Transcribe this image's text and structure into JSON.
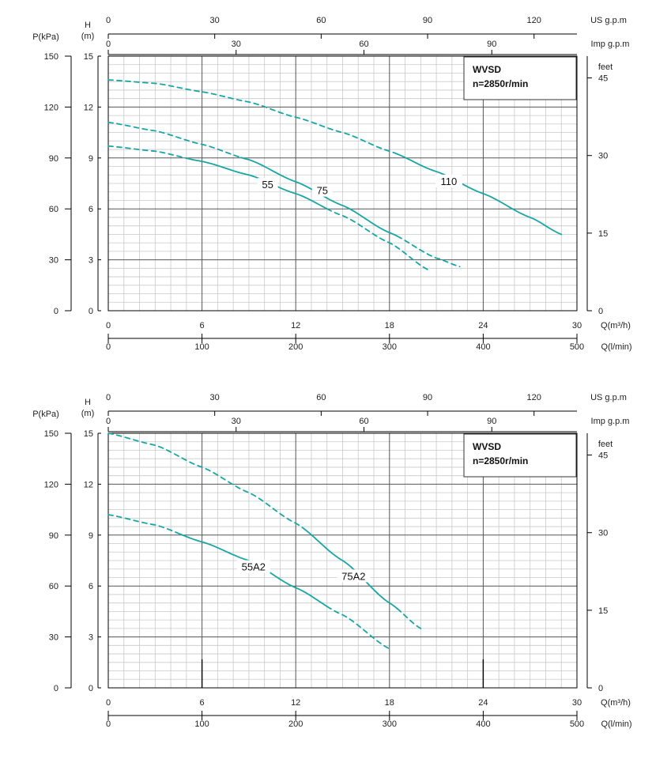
{
  "chart_data": [
    {
      "type": "line",
      "box": {
        "line1": "WVSD",
        "line2": "n=2850r/min"
      },
      "axes": {
        "p_label": "P(kPa)",
        "h_label": [
          "H",
          "(m)"
        ],
        "feet_label": "feet",
        "us_label": "US g.p.m",
        "imp_label": "Imp g.p.m",
        "qm3_label": "Q(m³/h)",
        "ql_label": "Q(l/min)"
      },
      "ticks": {
        "p": [
          "0",
          "30",
          "60",
          "90",
          "120",
          "150"
        ],
        "h": [
          "0",
          "3",
          "6",
          "9",
          "12",
          "15"
        ],
        "feet": [
          "0",
          "15",
          "30",
          "45"
        ],
        "us": [
          "0",
          "30",
          "60",
          "90",
          "120"
        ],
        "imp": [
          "0",
          "30",
          "60",
          "90"
        ],
        "qm3": [
          "0",
          "6",
          "12",
          "18",
          "24",
          "30"
        ],
        "ql": [
          "0",
          "100",
          "200",
          "300",
          "400",
          "500"
        ]
      },
      "xlim": [
        0,
        30
      ],
      "ylim": [
        0,
        15
      ],
      "grid": true,
      "series": [
        {
          "name": "55",
          "solid_range": [
            5,
            14
          ],
          "points": [
            [
              0,
              9.7
            ],
            [
              3,
              9.4
            ],
            [
              6,
              8.8
            ],
            [
              9,
              8.0
            ],
            [
              12,
              6.9
            ],
            [
              15,
              5.6
            ],
            [
              18,
              4.0
            ],
            [
              20.5,
              2.4
            ]
          ]
        },
        {
          "name": "75",
          "solid_range": [
            8.5,
            18.5
          ],
          "points": [
            [
              0,
              11.1
            ],
            [
              3,
              10.6
            ],
            [
              6,
              9.8
            ],
            [
              9,
              8.9
            ],
            [
              12,
              7.6
            ],
            [
              15,
              6.2
            ],
            [
              18,
              4.6
            ],
            [
              21,
              3.1
            ],
            [
              22.5,
              2.6
            ]
          ]
        },
        {
          "name": "110",
          "solid_range": [
            18.5,
            29
          ],
          "points": [
            [
              0,
              13.6
            ],
            [
              3,
              13.4
            ],
            [
              6,
              12.9
            ],
            [
              9,
              12.3
            ],
            [
              12,
              11.4
            ],
            [
              15,
              10.5
            ],
            [
              18,
              9.4
            ],
            [
              21,
              8.2
            ],
            [
              24,
              6.9
            ],
            [
              27,
              5.5
            ],
            [
              29,
              4.5
            ]
          ]
        }
      ],
      "label_pos": [
        {
          "x": 10.2,
          "y": 7.4
        },
        {
          "x": 13.7,
          "y": 7.05
        },
        {
          "x": 21.8,
          "y": 7.6
        }
      ]
    },
    {
      "type": "line",
      "box": {
        "line1": "WVSD",
        "line2": "n=2850r/min"
      },
      "axes": {
        "p_label": "P(kPa)",
        "h_label": [
          "H",
          "(m)"
        ],
        "feet_label": "feet",
        "us_label": "US g.p.m",
        "imp_label": "Imp g.p.m",
        "qm3_label": "Q(m³/h)",
        "ql_label": "Q(l/min)"
      },
      "ticks": {
        "p": [
          "0",
          "30",
          "60",
          "90",
          "120",
          "150"
        ],
        "h": [
          "0",
          "3",
          "6",
          "9",
          "12",
          "15"
        ],
        "feet": [
          "0",
          "15",
          "30",
          "45"
        ],
        "us": [
          "0",
          "30",
          "60",
          "90",
          "120"
        ],
        "imp": [
          "0",
          "30",
          "60",
          "90"
        ],
        "qm3": [
          "0",
          "6",
          "12",
          "18",
          "24",
          "30"
        ],
        "ql": [
          "0",
          "100",
          "200",
          "300",
          "400",
          "500"
        ]
      },
      "xlim": [
        0,
        30
      ],
      "ylim": [
        0,
        15
      ],
      "grid": true,
      "series": [
        {
          "name": "55A2",
          "solid_range": [
            4.5,
            14
          ],
          "points": [
            [
              0,
              10.2
            ],
            [
              3,
              9.6
            ],
            [
              6,
              8.6
            ],
            [
              9,
              7.5
            ],
            [
              12,
              5.9
            ],
            [
              15,
              4.3
            ],
            [
              18,
              2.3
            ]
          ]
        },
        {
          "name": "75A2",
          "solid_range": [
            12.5,
            18.5
          ],
          "points": [
            [
              0,
              15.0
            ],
            [
              3,
              14.3
            ],
            [
              6,
              13.0
            ],
            [
              9,
              11.5
            ],
            [
              12,
              9.7
            ],
            [
              15,
              7.5
            ],
            [
              18,
              5.0
            ],
            [
              20,
              3.5
            ]
          ]
        }
      ],
      "label_pos": [
        {
          "x": 9.3,
          "y": 7.1
        },
        {
          "x": 15.7,
          "y": 6.55
        }
      ]
    }
  ]
}
